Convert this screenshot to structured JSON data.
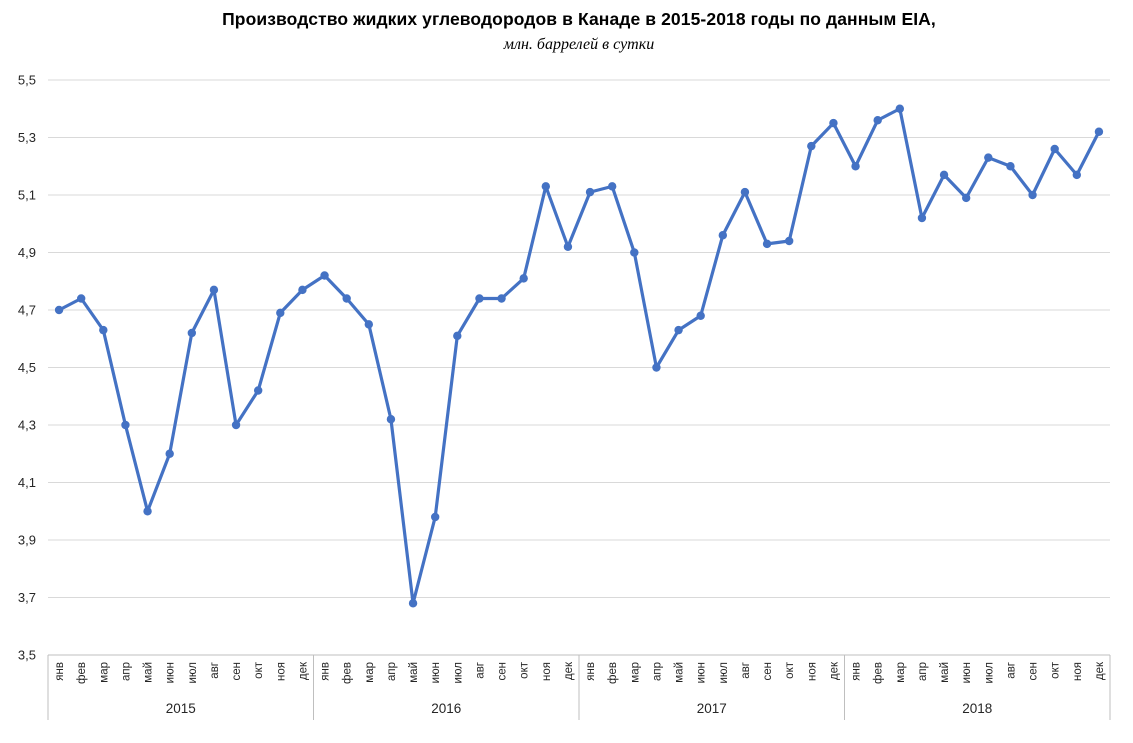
{
  "header": {
    "title": "Производство жидких углеводородов в Канаде в 2015-2018 годы по данным EIA,",
    "subtitle": "млн. баррелей в сутки"
  },
  "chart_data": {
    "type": "line",
    "title": "Производство жидких углеводородов в Канаде в 2015-2018 годы по данным EIA,",
    "subtitle": "млн. баррелей в сутки",
    "xlabel": "",
    "ylabel": "",
    "ylim": [
      3.5,
      5.5
    ],
    "ytick_step": 0.2,
    "ytick_labels": [
      "5,5",
      "5,3",
      "5,1",
      "4,9",
      "4,7",
      "4,5",
      "4,3",
      "4,1",
      "3,9",
      "3,7",
      "3,5"
    ],
    "month_labels": [
      "янв",
      "фев",
      "мар",
      "апр",
      "май",
      "июн",
      "июл",
      "авг",
      "сен",
      "окт",
      "ноя",
      "дек"
    ],
    "years": [
      "2015",
      "2016",
      "2017",
      "2018"
    ],
    "grid": true,
    "legend": "none",
    "line_color": "#4472C4",
    "marker_color": "#4472C4",
    "gridline_color": "#D9D9D9",
    "axis_color": "#BFBFBF",
    "tick_text_color": "#262626",
    "series": [
      {
        "values": [
          4.7,
          4.74,
          4.63,
          4.3,
          4.0,
          4.2,
          4.62,
          4.77,
          4.3,
          4.42,
          4.69,
          4.77,
          4.82,
          4.74,
          4.65,
          4.32,
          3.68,
          3.98,
          4.61,
          4.74,
          4.74,
          4.81,
          5.13,
          4.92,
          5.11,
          5.13,
          4.9,
          4.5,
          4.63,
          4.68,
          4.96,
          5.11,
          4.93,
          4.94,
          5.27,
          5.35,
          5.2,
          5.36,
          5.4,
          5.02,
          5.17,
          5.09,
          5.23,
          5.2,
          5.1,
          5.26,
          5.17,
          5.32
        ]
      }
    ]
  }
}
